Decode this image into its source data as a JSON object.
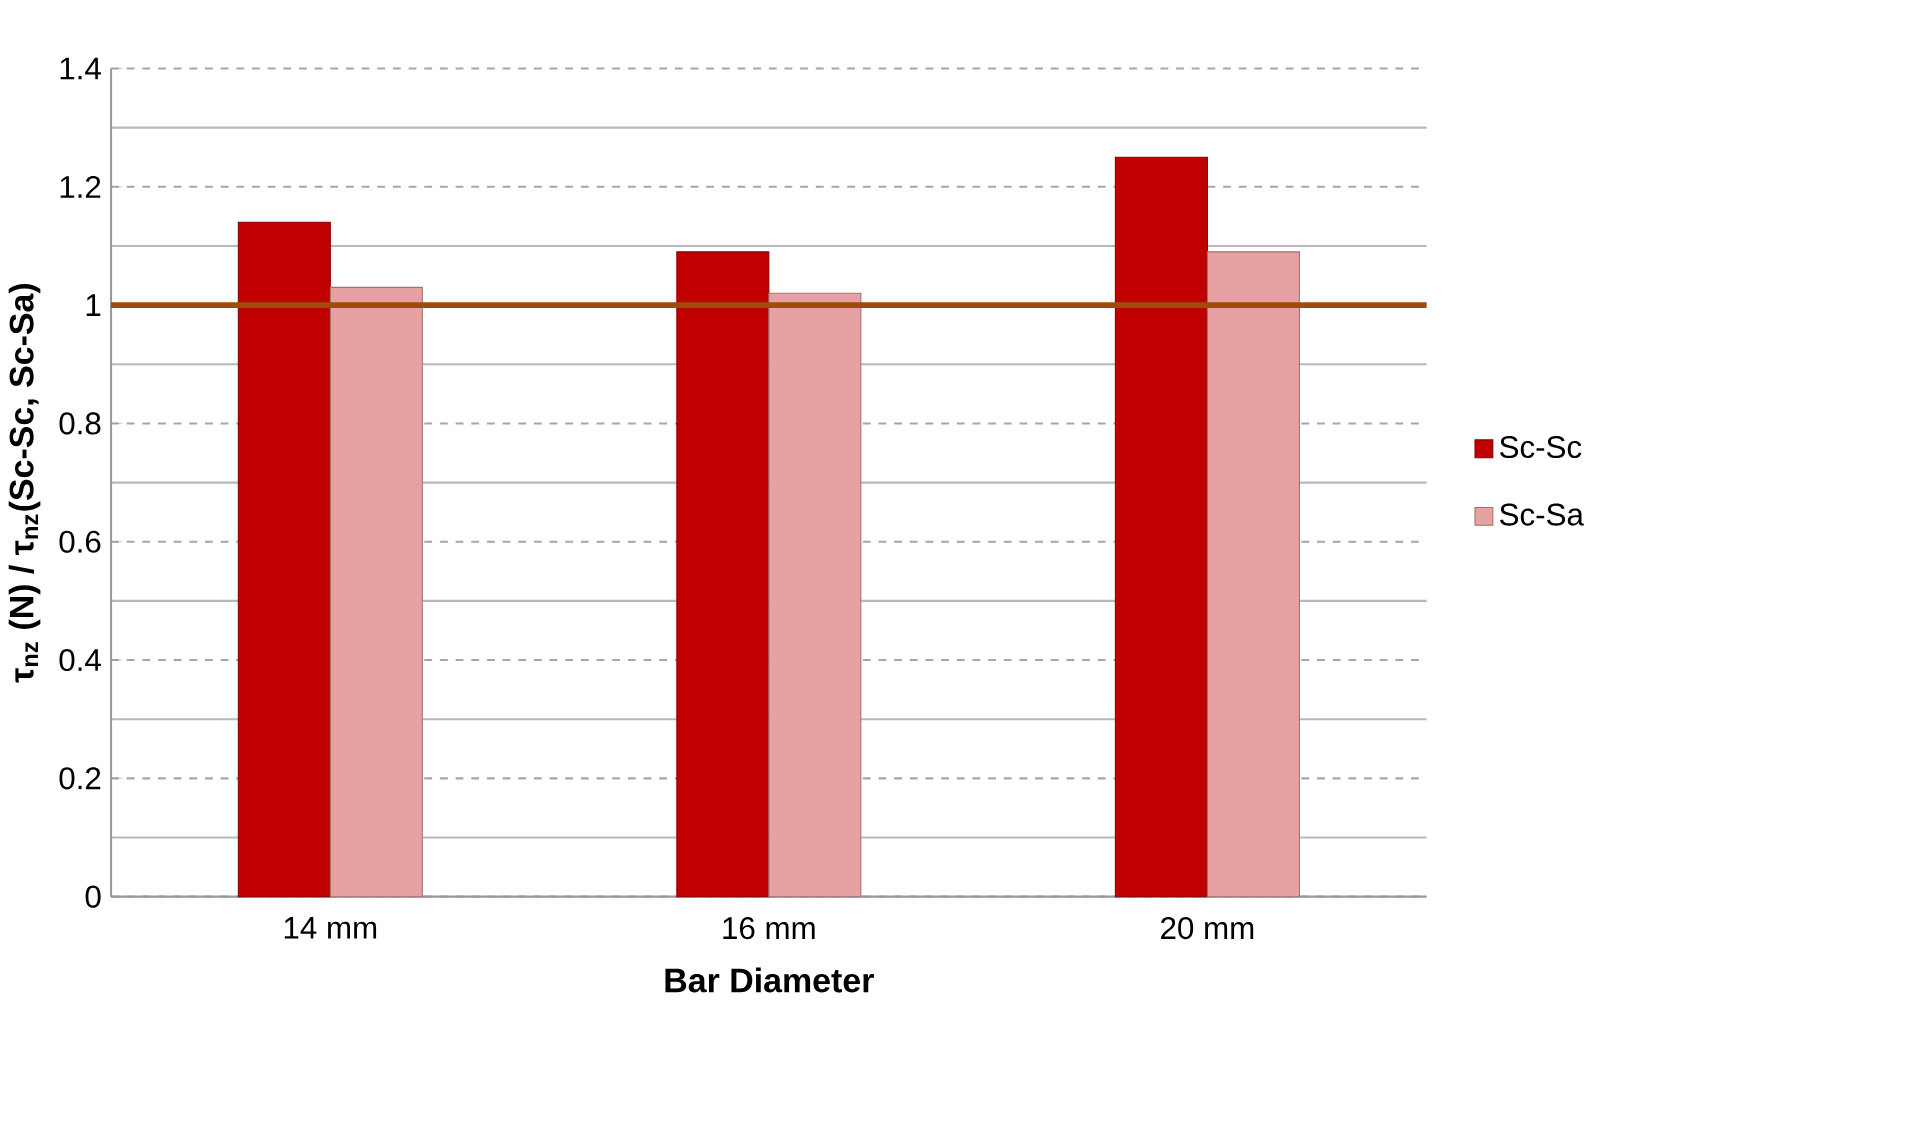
{
  "chart_data": {
    "type": "bar",
    "xlabel": "Bar Diameter",
    "ylabel": "τ$_{nz}$ (N) / τ$_{nz}$(Sc-Sc, Sc-Sa)",
    "categories": [
      "14 mm",
      "16 mm",
      "20 mm"
    ],
    "series": [
      {
        "name": "Sc-Sc",
        "color": "#c00000",
        "values": [
          1.14,
          1.09,
          1.25
        ]
      },
      {
        "name": "Sc-Sa",
        "color": "#e6a1a1",
        "values": [
          1.03,
          1.02,
          1.09
        ]
      }
    ],
    "ylim": [
      0,
      1.4
    ],
    "yticks": [
      0,
      {
        "value": 0.1,
        "label": null
      },
      0.2,
      {
        "value": 0.3,
        "label": null
      },
      0.4,
      {
        "value": 0.5,
        "label": null
      },
      0.6,
      {
        "value": 0.7,
        "label": null
      },
      0.8,
      {
        "value": 0.9,
        "label": null
      },
      1,
      {
        "value": 1.1,
        "label": null
      },
      1.2,
      {
        "value": 1.3,
        "label": null
      },
      1.4
    ],
    "ref_lines": [
      {
        "axis": "y",
        "value": 1,
        "color": "#a04a0c"
      }
    ],
    "grid": "y",
    "legend": "right"
  }
}
